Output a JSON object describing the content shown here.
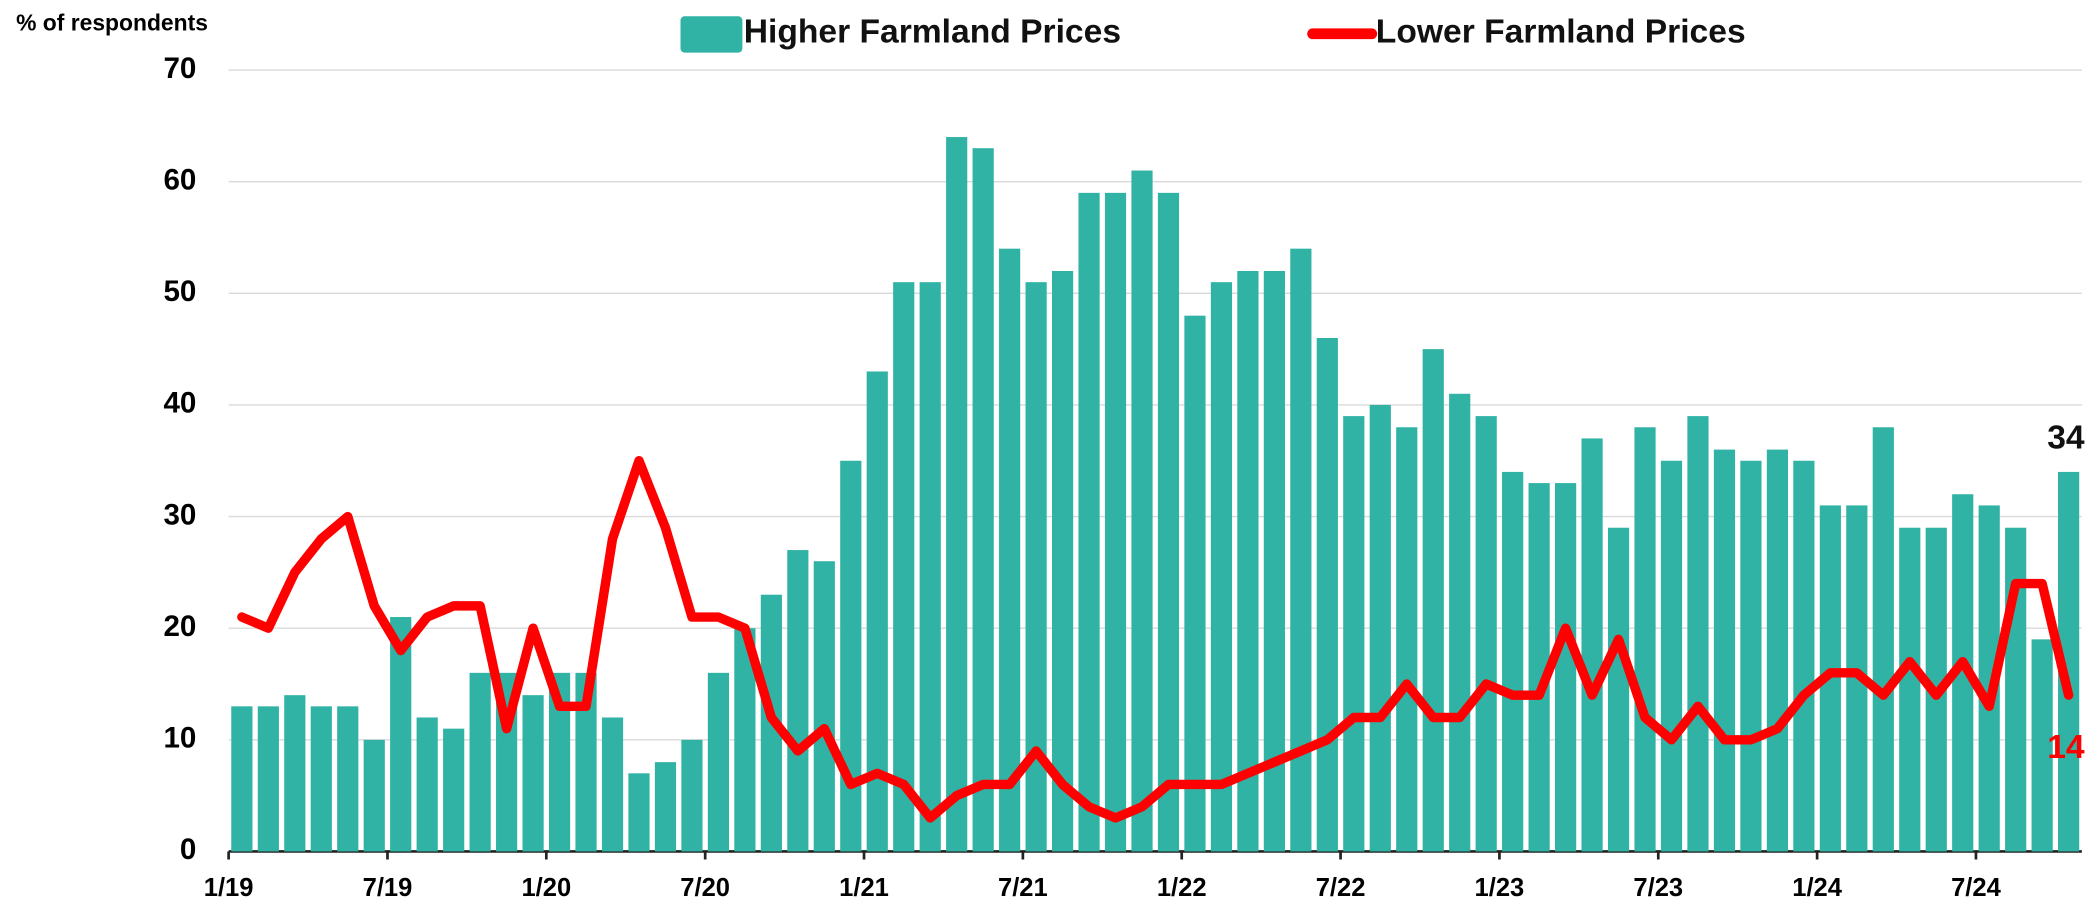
{
  "chart_data": {
    "type": "bar_line",
    "y_label": "% of respondents",
    "categories": [
      "1/19",
      null,
      null,
      null,
      null,
      null,
      "7/19",
      null,
      null,
      null,
      null,
      null,
      "1/20",
      null,
      null,
      null,
      null,
      null,
      "7/20",
      null,
      null,
      null,
      null,
      null,
      "1/21",
      null,
      null,
      null,
      null,
      null,
      "7/21",
      null,
      null,
      null,
      null,
      null,
      "1/22",
      null,
      null,
      null,
      null,
      null,
      "7/22",
      null,
      null,
      null,
      null,
      null,
      "1/23",
      null,
      null,
      null,
      null,
      null,
      "7/23",
      null,
      null,
      null,
      null,
      null,
      "1/24",
      null,
      null,
      null,
      null,
      null,
      "7/24",
      null,
      null,
      null
    ],
    "series": [
      {
        "name": "Higher Farmland Prices",
        "type": "bar",
        "color": "#30b2a4",
        "values": [
          13,
          13,
          14,
          13,
          13,
          10,
          21,
          12,
          11,
          16,
          16,
          14,
          16,
          16,
          12,
          7,
          8,
          10,
          16,
          20,
          23,
          27,
          26,
          35,
          43,
          51,
          51,
          64,
          63,
          54,
          51,
          52,
          59,
          59,
          61,
          59,
          48,
          51,
          52,
          52,
          54,
          46,
          39,
          40,
          38,
          45,
          41,
          39,
          34,
          33,
          33,
          37,
          29,
          38,
          35,
          39,
          36,
          35,
          36,
          35,
          31,
          31,
          38,
          29,
          29,
          32,
          31,
          29,
          19,
          34
        ]
      },
      {
        "name": "Lower Farmland Prices",
        "type": "line",
        "color": "#ff0000",
        "values": [
          21,
          20,
          25,
          28,
          30,
          22,
          18,
          21,
          22,
          22,
          11,
          20,
          13,
          13,
          28,
          35,
          29,
          21,
          21,
          20,
          12,
          9,
          11,
          6,
          7,
          6,
          3,
          5,
          6,
          6,
          9,
          6,
          4,
          3,
          4,
          6,
          6,
          6,
          7,
          8,
          9,
          10,
          12,
          12,
          15,
          12,
          12,
          15,
          14,
          14,
          20,
          14,
          19,
          12,
          10,
          13,
          10,
          10,
          11,
          14,
          16,
          16,
          14,
          17,
          14,
          17,
          13,
          24,
          24,
          14
        ]
      }
    ],
    "ylim": [
      0,
      70
    ],
    "yticks": [
      0,
      10,
      20,
      30,
      40,
      50,
      60,
      70
    ],
    "grid": true,
    "legend": "top"
  }
}
